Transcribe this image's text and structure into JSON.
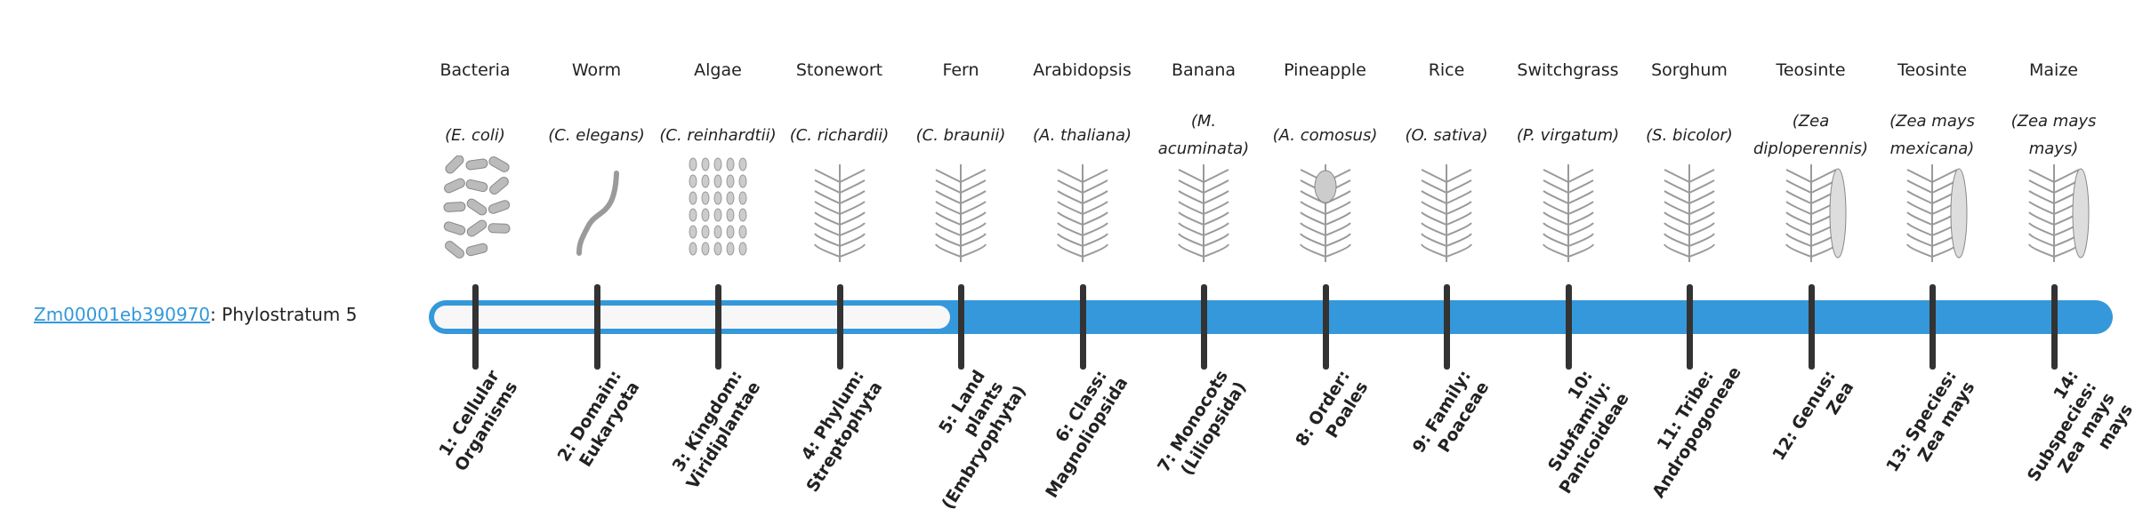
{
  "gene": {
    "id": "Zm00001eb390970",
    "suffix": ": Phylostratum 5",
    "phylostratum": 5
  },
  "colors": {
    "accent": "#3498db",
    "tick": "#333333",
    "unfilled": "#f7f7f7"
  },
  "progress": {
    "filled_from_stratum": 5,
    "total_strata": 14
  },
  "strata": [
    {
      "name": "Bacteria",
      "species": "(E. coli)",
      "icon": "bacteria-icon",
      "label": "1: Cellular Organisms"
    },
    {
      "name": "Worm",
      "species": "(C. elegans)",
      "icon": "worm-icon",
      "label": "2: Domain: Eukaryota"
    },
    {
      "name": "Algae",
      "species": "(C. reinhardtii)",
      "icon": "algae-icon",
      "label": "3: Kingdom: Viridiplantae"
    },
    {
      "name": "Stonewort",
      "species": "(C. richardii)",
      "icon": "stonewort-icon",
      "label": "4: Phylum: Streptophyta"
    },
    {
      "name": "Fern",
      "species": "(C. braunii)",
      "icon": "fern-icon",
      "label": "5: Land plants (Embryophyta)"
    },
    {
      "name": "Arabidopsis",
      "species": "(A. thaliana)",
      "icon": "arabidopsis-icon",
      "label": "6: Class: Magnoliopsida"
    },
    {
      "name": "Banana",
      "species": "(M. acuminata)",
      "icon": "banana-icon",
      "label": "7: Monocots (Liliopsida)"
    },
    {
      "name": "Pineapple",
      "species": "(A. comosus)",
      "icon": "pineapple-icon",
      "label": "8: Order: Poales"
    },
    {
      "name": "Rice",
      "species": "(O. sativa)",
      "icon": "rice-icon",
      "label": "9: Family: Poaceae"
    },
    {
      "name": "Switchgrass",
      "species": "(P. virgatum)",
      "icon": "switchgrass-icon",
      "label": "10: Subfamily: Panicoideae"
    },
    {
      "name": "Sorghum",
      "species": "(S. bicolor)",
      "icon": "sorghum-icon",
      "label": "11: Tribe: Andropogoneae"
    },
    {
      "name": "Teosinte",
      "species": "(Zea diploperennis)",
      "icon": "teosinte-icon",
      "label": "12: Genus: Zea"
    },
    {
      "name": "Teosinte",
      "species": "(Zea mays mexicana)",
      "icon": "teosinte-icon",
      "label": "13: Species: Zea mays"
    },
    {
      "name": "Maize",
      "species": "(Zea mays mays)",
      "icon": "maize-icon",
      "label": "14: Subspecies: Zea mays mays"
    }
  ]
}
